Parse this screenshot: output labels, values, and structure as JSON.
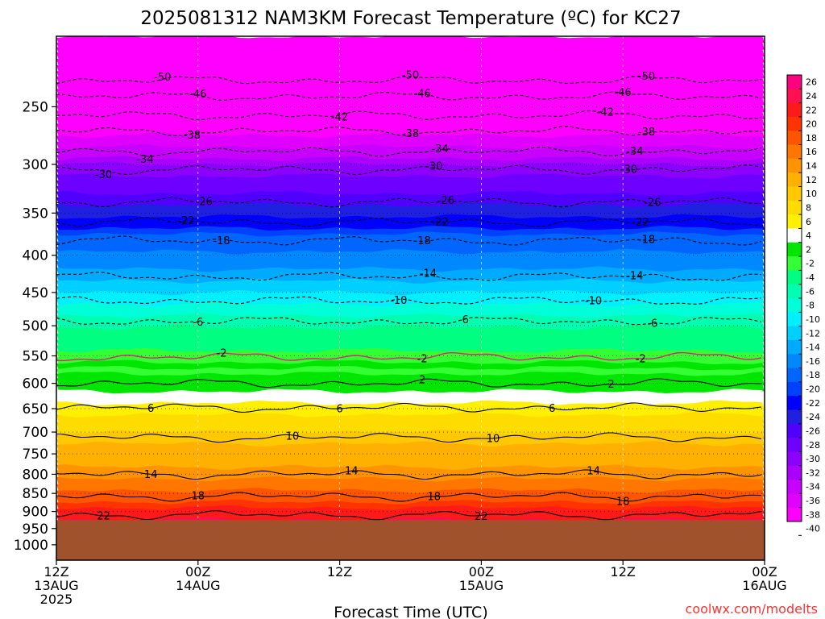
{
  "chart_data": {
    "type": "heatmap",
    "title": "2025081312 NAM3KM Forecast Temperature (ºC) for KC27",
    "xlabel": "Forecast Time (UTC)",
    "ylabel": "",
    "watermark": "coolwx.com/modelts",
    "yscale": "log",
    "ylim": [
      1050,
      200
    ],
    "xlim": [
      0,
      60
    ],
    "y_ticks": [
      250,
      300,
      350,
      400,
      450,
      500,
      550,
      600,
      650,
      700,
      750,
      800,
      850,
      900,
      950,
      1000
    ],
    "x_ticks": [
      {
        "hour": 0,
        "lines": [
          "12Z",
          "13AUG",
          "2025"
        ]
      },
      {
        "hour": 12,
        "lines": [
          "00Z",
          "14AUG"
        ]
      },
      {
        "hour": 24,
        "lines": [
          "12Z"
        ]
      },
      {
        "hour": 36,
        "lines": [
          "00Z",
          "15AUG"
        ]
      },
      {
        "hour": 48,
        "lines": [
          "12Z"
        ]
      },
      {
        "hour": 60,
        "lines": [
          "00Z",
          "16AUG"
        ]
      }
    ],
    "surface_pressure": 925,
    "ground_color": "#a0522d",
    "colorbar": {
      "labels": [
        26,
        24,
        22,
        20,
        18,
        16,
        14,
        12,
        10,
        8,
        6,
        4,
        2,
        -2,
        -4,
        -6,
        -8,
        -10,
        -12,
        -14,
        -16,
        -18,
        -20,
        -22,
        -24,
        -26,
        -28,
        -30,
        -32,
        -34,
        -36,
        -38,
        -40
      ],
      "colors": [
        "#ff0080",
        "#ff1050",
        "#ff1a1a",
        "#ff3300",
        "#ff5500",
        "#ff7700",
        "#ff9400",
        "#ffb000",
        "#ffc800",
        "#ffdc00",
        "#fff000",
        "#ffffff",
        "#00e600",
        "#33ff33",
        "#00ff80",
        "#00ffb0",
        "#00ffd8",
        "#00f0ff",
        "#00d0ff",
        "#00aaff",
        "#0088ff",
        "#0066ff",
        "#0040ff",
        "#0000ff",
        "#2020e0",
        "#5000ff",
        "#6e00ff",
        "#8c00ff",
        "#aa00ff",
        "#c800ff",
        "#e000ff",
        "#ff00ff"
      ]
    },
    "contours": [
      {
        "value": -50,
        "base": 230,
        "labels": [
          {
            "h": 9.0,
            "d": -3
          },
          {
            "h": 30.0,
            "d": -2
          },
          {
            "h": 50.0,
            "d": -1
          }
        ]
      },
      {
        "value": -46,
        "base": 242,
        "labels": [
          {
            "h": 12.0,
            "d": -1
          },
          {
            "h": 31.0,
            "d": -1
          },
          {
            "h": 48.0,
            "d": -1
          }
        ]
      },
      {
        "value": -42,
        "base": 257,
        "labels": [
          {
            "h": 24.0,
            "d": 2
          },
          {
            "h": 46.5,
            "d": -1
          }
        ]
      },
      {
        "value": -38,
        "base": 270,
        "labels": [
          {
            "h": 11.5,
            "d": 2
          },
          {
            "h": 30.0,
            "d": -2
          },
          {
            "h": 50.0,
            "d": -2
          }
        ]
      },
      {
        "value": -34,
        "base": 288,
        "labels": [
          {
            "h": 7.5,
            "d": 4
          },
          {
            "h": 32.5,
            "d": -1
          },
          {
            "h": 49.0,
            "d": -1
          }
        ]
      },
      {
        "value": -30,
        "base": 305,
        "labels": [
          {
            "h": 4.0,
            "d": 5
          },
          {
            "h": 32.0,
            "d": -2
          },
          {
            "h": 48.5,
            "d": -1
          }
        ]
      },
      {
        "value": -26,
        "base": 338,
        "labels": [
          {
            "h": 12.5,
            "d": -1
          },
          {
            "h": 33.0,
            "d": -1
          },
          {
            "h": 50.5,
            "d": -1
          }
        ]
      },
      {
        "value": -22,
        "base": 360,
        "labels": [
          {
            "h": 11.0,
            "d": -2
          },
          {
            "h": 32.5,
            "d": 0
          },
          {
            "h": 49.5,
            "d": -1
          }
        ]
      },
      {
        "value": -18,
        "base": 382,
        "labels": [
          {
            "h": 14.0,
            "d": 2
          },
          {
            "h": 31.0,
            "d": -1
          },
          {
            "h": 50.0,
            "d": -1
          }
        ]
      },
      {
        "value": -14,
        "base": 428,
        "labels": [
          {
            "h": 31.5,
            "d": -2
          },
          {
            "h": 49.0,
            "d": -1
          }
        ]
      },
      {
        "value": -10,
        "base": 462,
        "labels": [
          {
            "h": 29.0,
            "d": 1
          },
          {
            "h": 45.5,
            "d": 0
          }
        ]
      },
      {
        "value": -6,
        "base": 493,
        "labels": [
          {
            "h": 12.0,
            "d": 0
          },
          {
            "h": 34.5,
            "d": 0
          },
          {
            "h": 50.5,
            "d": 0
          }
        ]
      },
      {
        "value": -2,
        "base": 552,
        "labels": [
          {
            "h": 14.0,
            "d": 0
          },
          {
            "h": 31.0,
            "d": 0
          },
          {
            "h": 49.5,
            "d": 0
          }
        ]
      },
      {
        "value": 2,
        "base": 600,
        "labels": [
          {
            "h": 31.0,
            "d": 0
          },
          {
            "h": 47.0,
            "d": 0
          }
        ]
      },
      {
        "value": 6,
        "base": 648,
        "labels": [
          {
            "h": 8.0,
            "d": 0
          },
          {
            "h": 24.0,
            "d": 0
          },
          {
            "h": 42.0,
            "d": 0
          }
        ]
      },
      {
        "value": 10,
        "base": 712,
        "labels": [
          {
            "h": 20.0,
            "d": 1
          },
          {
            "h": 37.0,
            "d": 0
          }
        ]
      },
      {
        "value": 14,
        "base": 800,
        "labels": [
          {
            "h": 8.0,
            "d": 0
          },
          {
            "h": 25.0,
            "d": 0
          },
          {
            "h": 45.5,
            "d": 0
          }
        ]
      },
      {
        "value": 18,
        "base": 858,
        "labels": [
          {
            "h": 12.0,
            "d": -1
          },
          {
            "h": 32.0,
            "d": 0
          },
          {
            "h": 48.0,
            "d": 1
          }
        ]
      },
      {
        "value": 22,
        "base": 910,
        "labels": [
          {
            "h": 4.0,
            "d": 0
          },
          {
            "h": 36.0,
            "d": 1
          }
        ]
      }
    ]
  }
}
